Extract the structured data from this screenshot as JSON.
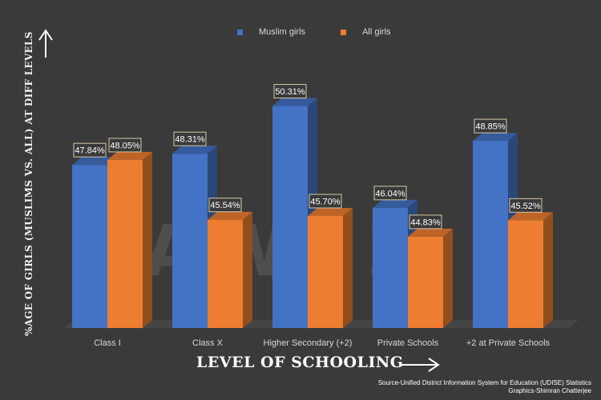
{
  "chart_data": {
    "type": "bar",
    "categories": [
      "Class I",
      "Class X",
      "Higher Secondary (+2)",
      "Private Schools",
      "+2 at Private Schools"
    ],
    "series": [
      {
        "name": "Muslim girls",
        "values": [
          47.84,
          48.31,
          50.31,
          46.04,
          48.85
        ],
        "labels": [
          "47.84%",
          "48.31%",
          "50.31%",
          "46.04%",
          "48.85%"
        ],
        "color": "#4472c4"
      },
      {
        "name": "All girls",
        "values": [
          48.05,
          45.54,
          45.7,
          44.83,
          45.52
        ],
        "labels": [
          "48.05%",
          "45.54%",
          "45.70%",
          "44.83%",
          "45.52%"
        ],
        "color": "#ed7d31"
      }
    ],
    "ylabel": "%AGE OF GIRLS (MUSLIMS VS. ALL) AT DIFF LEVELS",
    "xlabel": "LEVEL OF SCHOOLING",
    "ylim": [
      41,
      51
    ],
    "grid": false,
    "legend_position": "top-center"
  },
  "source_line": "Source-Unified District Information System for Education  (UDISE) Statistics",
  "credit_line": "Graphics-Shimran Chatterjee",
  "watermark_text": "AWAZ",
  "colors": {
    "background": "#3a3a3a",
    "muslim": "#4472c4",
    "all": "#ed7d31"
  }
}
